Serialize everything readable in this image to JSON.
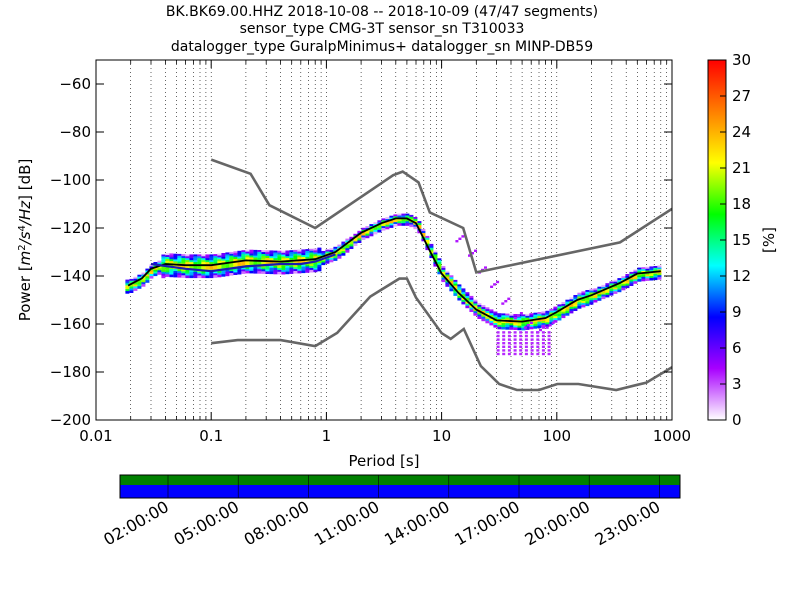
{
  "title_lines": [
    "BK.BK69.00.HHZ   2018-10-08 -- 2018-10-09  (47/47 segments)",
    "sensor_type CMG-3T sensor_sn T310033",
    "datalogger_type GuralpMinimus+ datalogger_sn MINP-DB59"
  ],
  "chart_data": {
    "type": "heatmap",
    "xlabel": "Period [s]",
    "ylabel": "Power [m²/s⁴/Hz] [dB]",
    "ylabel_parts": {
      "prefix": "Power [",
      "unit_m": "m",
      "exp2": "2",
      "slash1": "/",
      "unit_s": "s",
      "exp4": "4",
      "slash2": "/",
      "unit_hz": "Hz",
      "suffix": "] [dB]"
    },
    "x_scale": "log",
    "xlim": [
      0.01,
      1000
    ],
    "ylim": [
      -200,
      -50
    ],
    "x_ticks": [
      0.01,
      0.1,
      1,
      10,
      100,
      1000
    ],
    "x_tick_labels": [
      "0.01",
      "0.1",
      "1",
      "10",
      "100",
      "1000"
    ],
    "y_ticks": [
      -200,
      -180,
      -160,
      -140,
      -120,
      -100,
      -80,
      -60
    ],
    "y_tick_labels": [
      "−200",
      "−180",
      "−160",
      "−140",
      "−120",
      "−100",
      "−80",
      "−60"
    ],
    "grid": "dotted-vertical",
    "nhnm": [
      [
        0.1,
        -168
      ],
      [
        0.17,
        -166.7
      ],
      [
        0.4,
        -166.7
      ],
      [
        0.8,
        -169.2
      ],
      [
        1.24,
        -163.7
      ],
      [
        2.4,
        -148.6
      ],
      [
        4.3,
        -141.1
      ],
      [
        5,
        -141.1
      ],
      [
        6,
        -149
      ],
      [
        10,
        -163.8
      ],
      [
        12,
        -166.2
      ],
      [
        15.6,
        -162.1
      ],
      [
        21.9,
        -177.5
      ],
      [
        31.6,
        -185
      ],
      [
        45,
        -187.5
      ],
      [
        70,
        -187.5
      ],
      [
        101,
        -185
      ],
      [
        154,
        -185
      ],
      [
        328,
        -187.5
      ],
      [
        600,
        -184.4
      ],
      [
        1000,
        -178
      ]
    ],
    "nlnm": [
      [
        0.1,
        -91.5
      ],
      [
        0.22,
        -97.4
      ],
      [
        0.32,
        -110.5
      ],
      [
        0.8,
        -120
      ],
      [
        3.8,
        -98
      ],
      [
        4.6,
        -96.5
      ],
      [
        6.3,
        -101
      ],
      [
        7.9,
        -113.5
      ],
      [
        15.4,
        -120
      ],
      [
        20,
        -138.5
      ],
      [
        354,
        -126
      ],
      [
        1000,
        -112
      ]
    ],
    "mean_curve": [
      [
        0.019,
        -144
      ],
      [
        0.025,
        -141
      ],
      [
        0.03,
        -137
      ],
      [
        0.04,
        -135
      ],
      [
        0.06,
        -135.5
      ],
      [
        0.1,
        -135.5
      ],
      [
        0.2,
        -133.5
      ],
      [
        0.4,
        -134
      ],
      [
        0.8,
        -133
      ],
      [
        1.2,
        -130
      ],
      [
        2,
        -122
      ],
      [
        3,
        -118
      ],
      [
        4,
        -116
      ],
      [
        5,
        -116
      ],
      [
        6,
        -118
      ],
      [
        8,
        -130
      ],
      [
        10,
        -139
      ],
      [
        14,
        -147
      ],
      [
        20,
        -154
      ],
      [
        30,
        -158.5
      ],
      [
        50,
        -159
      ],
      [
        80,
        -157.5
      ],
      [
        100,
        -155
      ],
      [
        150,
        -150
      ],
      [
        200,
        -148
      ],
      [
        350,
        -143
      ],
      [
        500,
        -139
      ],
      [
        800,
        -138
      ]
    ],
    "highlight_curve": [
      [
        0.03,
        -135
      ],
      [
        0.06,
        -137
      ],
      [
        0.1,
        -138
      ],
      [
        0.2,
        -136
      ],
      [
        0.4,
        -135
      ],
      [
        0.6,
        -135
      ],
      [
        0.8,
        -134
      ],
      [
        1.2,
        -131
      ]
    ],
    "colorbar": {
      "label": "[%]",
      "min": 0,
      "max": 30,
      "ticks": [
        0,
        3,
        6,
        9,
        12,
        15,
        18,
        21,
        24,
        27,
        30
      ],
      "tick_labels": [
        "0",
        "3",
        "6",
        "9",
        "12",
        "15",
        "18",
        "21",
        "24",
        "27",
        "30"
      ],
      "colormap": [
        "#ffffff",
        "#a800ff",
        "#0000ff",
        "#00ffff",
        "#00ff00",
        "#ffff00",
        "#ff7f00",
        "#ff0000"
      ]
    }
  },
  "timeline": {
    "labels": [
      "02:00:00",
      "05:00:00",
      "08:00:00",
      "11:00:00",
      "14:00:00",
      "17:00:00",
      "20:00:00",
      "23:00:00"
    ],
    "data_color": "#0000ff",
    "gap_color": "#008000",
    "coverage_fraction": 1.0
  }
}
